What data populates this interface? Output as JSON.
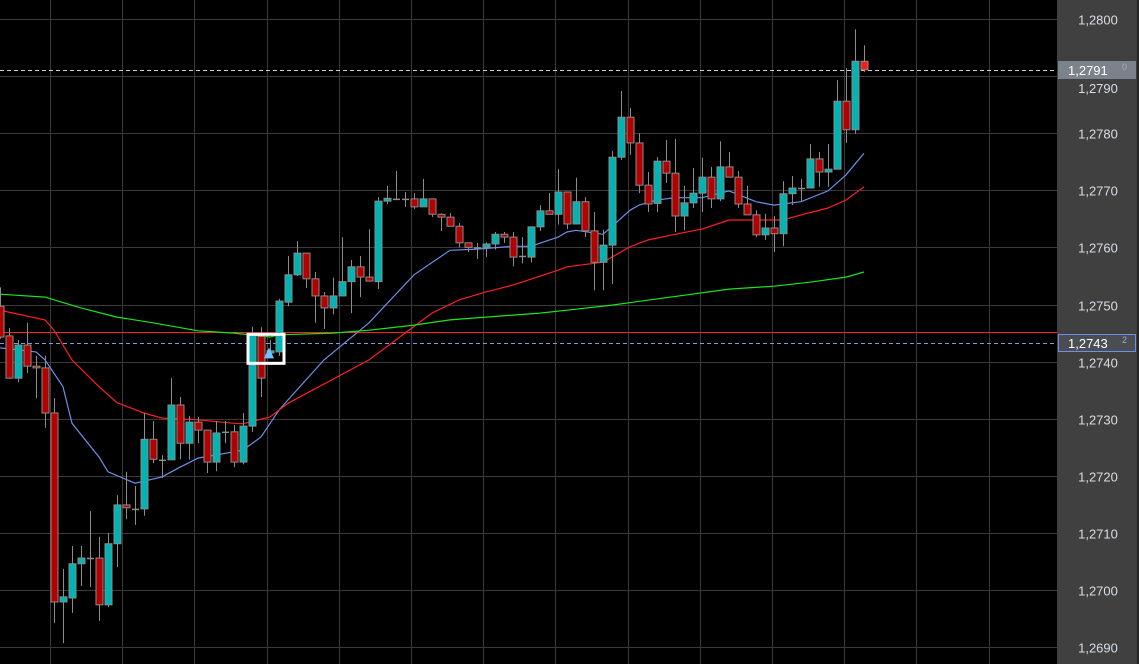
{
  "chart_data": {
    "type": "candlestick",
    "title": "",
    "xlabel": "",
    "ylabel": "",
    "ylim": [
      1.2687,
      1.28035
    ],
    "grid": true,
    "y_ticks": [
      "1,2800",
      "1,2790",
      "1,2780",
      "1,2770",
      "1,2760",
      "1,2750",
      "1,2740",
      "1,2730",
      "1,2720",
      "1,2710",
      "1,2700",
      "1,2690"
    ],
    "y_tick_values": [
      1.28,
      1.279,
      1.278,
      1.277,
      1.276,
      1.275,
      1.274,
      1.273,
      1.272,
      1.271,
      1.27,
      1.269
    ],
    "candles_ohlc": [
      [
        1.27497,
        1.2753,
        1.2744,
        1.27443
      ],
      [
        1.27445,
        1.27459,
        1.2737,
        1.27371
      ],
      [
        1.27371,
        1.27438,
        1.27364,
        1.27429
      ],
      [
        1.27429,
        1.27468,
        1.2738,
        1.27392
      ],
      [
        1.27392,
        1.2741,
        1.27336,
        1.27389
      ],
      [
        1.27389,
        1.2741,
        1.27284,
        1.2731
      ],
      [
        1.2731,
        1.27336,
        1.26942,
        1.26979
      ],
      [
        1.26979,
        1.27037,
        1.26907,
        1.26988
      ],
      [
        1.26986,
        1.27077,
        1.2696,
        1.27046
      ],
      [
        1.27046,
        1.27077,
        1.27007,
        1.27056
      ],
      [
        1.27056,
        1.27138,
        1.27005,
        1.27056
      ],
      [
        1.27056,
        1.27093,
        1.26946,
        1.26974
      ],
      [
        1.26974,
        1.271,
        1.2697,
        1.27081
      ],
      [
        1.27081,
        1.27166,
        1.2704,
        1.27149
      ],
      [
        1.27149,
        1.27207,
        1.27124,
        1.27144
      ],
      [
        1.27142,
        1.27182,
        1.27114,
        1.27142
      ],
      [
        1.27142,
        1.2731,
        1.2713,
        1.27264
      ],
      [
        1.27264,
        1.27296,
        1.27222,
        1.27229
      ],
      [
        1.27228,
        1.27236,
        1.27196,
        1.27228
      ],
      [
        1.27228,
        1.27371,
        1.27228,
        1.27324
      ],
      [
        1.27324,
        1.27338,
        1.27229,
        1.27257
      ],
      [
        1.27257,
        1.27305,
        1.27228,
        1.27294
      ],
      [
        1.27294,
        1.27303,
        1.27257,
        1.2728
      ],
      [
        1.2728,
        1.2728,
        1.27205,
        1.27224
      ],
      [
        1.27224,
        1.27296,
        1.27208,
        1.27275
      ],
      [
        1.27277,
        1.27296,
        1.27257,
        1.27277
      ],
      [
        1.27277,
        1.27289,
        1.27215,
        1.27224
      ],
      [
        1.27224,
        1.2731,
        1.2722,
        1.27287
      ],
      [
        1.27287,
        1.27461,
        1.27277,
        1.27447
      ],
      [
        1.27444,
        1.2746,
        1.27338,
        1.27371
      ],
      [
        1.27415,
        1.27438,
        1.27408,
        1.27419
      ],
      [
        1.27417,
        1.2751,
        1.2741,
        1.27506
      ],
      [
        1.27504,
        1.27585,
        1.27497,
        1.27552
      ],
      [
        1.27552,
        1.27611,
        1.2755,
        1.2759
      ],
      [
        1.2759,
        1.2759,
        1.27529,
        1.27545
      ],
      [
        1.27545,
        1.27557,
        1.27468,
        1.27515
      ],
      [
        1.27515,
        1.27522,
        1.27457,
        1.27494
      ],
      [
        1.27494,
        1.27547,
        1.27483,
        1.27515
      ],
      [
        1.27515,
        1.27618,
        1.27515,
        1.2754
      ],
      [
        1.2754,
        1.27578,
        1.27485,
        1.27566
      ],
      [
        1.27566,
        1.27585,
        1.27513,
        1.27548
      ],
      [
        1.27548,
        1.27632,
        1.2754,
        1.27541
      ],
      [
        1.2754,
        1.27688,
        1.27527,
        1.27681
      ],
      [
        1.27681,
        1.27708,
        1.27676,
        1.27686
      ],
      [
        1.27685,
        1.27734,
        1.27685,
        1.27685
      ],
      [
        1.27685,
        1.27697,
        1.27671,
        1.27685
      ],
      [
        1.27685,
        1.27695,
        1.27667,
        1.27671
      ],
      [
        1.27671,
        1.2772,
        1.27671,
        1.27685
      ],
      [
        1.27685,
        1.27685,
        1.27653,
        1.27658
      ],
      [
        1.27658,
        1.2766,
        1.27629,
        1.27653
      ],
      [
        1.27653,
        1.2766,
        1.27637,
        1.27637
      ],
      [
        1.27637,
        1.27643,
        1.276,
        1.27608
      ],
      [
        1.27608,
        1.27608,
        1.27592,
        1.276
      ],
      [
        1.276,
        1.27608,
        1.2758,
        1.276
      ],
      [
        1.276,
        1.27609,
        1.27583,
        1.27606
      ],
      [
        1.27606,
        1.27627,
        1.27596,
        1.27623
      ],
      [
        1.27623,
        1.27627,
        1.27608,
        1.27618
      ],
      [
        1.27618,
        1.27627,
        1.27567,
        1.27583
      ],
      [
        1.27585,
        1.27618,
        1.27572,
        1.27585
      ],
      [
        1.27583,
        1.27636,
        1.27574,
        1.27636
      ],
      [
        1.27636,
        1.27674,
        1.27629,
        1.27664
      ],
      [
        1.27664,
        1.27695,
        1.27658,
        1.27658
      ],
      [
        1.27658,
        1.27737,
        1.2764,
        1.27697
      ],
      [
        1.27697,
        1.27697,
        1.27632,
        1.27641
      ],
      [
        1.27641,
        1.27722,
        1.27641,
        1.2768
      ],
      [
        1.2768,
        1.27688,
        1.27618,
        1.27629
      ],
      [
        1.27629,
        1.27662,
        1.27525,
        1.27574
      ],
      [
        1.27574,
        1.27631,
        1.27525,
        1.27604
      ],
      [
        1.27604,
        1.27769,
        1.27536,
        1.27758
      ],
      [
        1.27758,
        1.27874,
        1.27753,
        1.27828
      ],
      [
        1.27828,
        1.27844,
        1.27762,
        1.27783
      ],
      [
        1.27783,
        1.278,
        1.27695,
        1.27709
      ],
      [
        1.27709,
        1.27732,
        1.27662,
        1.27676
      ],
      [
        1.27677,
        1.27758,
        1.27662,
        1.27751
      ],
      [
        1.27751,
        1.27788,
        1.27713,
        1.2773
      ],
      [
        1.2773,
        1.2779,
        1.27627,
        1.27655
      ],
      [
        1.27655,
        1.27708,
        1.2763,
        1.27678
      ],
      [
        1.27678,
        1.27739,
        1.27669,
        1.27695
      ],
      [
        1.27695,
        1.27757,
        1.27662,
        1.27723
      ],
      [
        1.27723,
        1.27741,
        1.27669,
        1.27685
      ],
      [
        1.27685,
        1.27786,
        1.27681,
        1.27741
      ],
      [
        1.27741,
        1.27767,
        1.27723,
        1.27723
      ],
      [
        1.27723,
        1.27734,
        1.27669,
        1.27676
      ],
      [
        1.27676,
        1.27708,
        1.27657,
        1.27657
      ],
      [
        1.27657,
        1.27665,
        1.27618,
        1.27622
      ],
      [
        1.27622,
        1.27659,
        1.27613,
        1.27634
      ],
      [
        1.27634,
        1.27655,
        1.27592,
        1.27624
      ],
      [
        1.27624,
        1.27716,
        1.27602,
        1.27694
      ],
      [
        1.27694,
        1.27725,
        1.27674,
        1.27704
      ],
      [
        1.27704,
        1.2772,
        1.2768,
        1.27704
      ],
      [
        1.27704,
        1.27781,
        1.27704,
        1.27755
      ],
      [
        1.27755,
        1.27767,
        1.27706,
        1.27732
      ],
      [
        1.27732,
        1.27781,
        1.27706,
        1.27737
      ],
      [
        1.27737,
        1.27893,
        1.27737,
        1.27856
      ],
      [
        1.27856,
        1.27914,
        1.27783,
        1.27806
      ],
      [
        1.27806,
        1.27982,
        1.27799,
        1.27926
      ],
      [
        1.27926,
        1.27954,
        1.27907,
        1.27911
      ]
    ],
    "moving_averages": [
      {
        "color": "#6f8fe8",
        "points": [
          [
            0,
            1.27424
          ],
          [
            4,
            1.27417
          ],
          [
            5,
            1.27403
          ],
          [
            7,
            1.27356
          ],
          [
            8,
            1.27292
          ],
          [
            11,
            1.27233
          ],
          [
            12,
            1.27207
          ],
          [
            15,
            1.27187
          ],
          [
            18,
            1.27198
          ],
          [
            20,
            1.27215
          ],
          [
            22,
            1.27231
          ],
          [
            26,
            1.27242
          ],
          [
            27,
            1.27245
          ],
          [
            29,
            1.27268
          ],
          [
            31,
            1.27315
          ],
          [
            32,
            1.27333
          ],
          [
            36,
            1.27403
          ],
          [
            41,
            1.27468
          ],
          [
            46,
            1.27552
          ],
          [
            50,
            1.27595
          ],
          [
            53,
            1.27597
          ],
          [
            57,
            1.27602
          ],
          [
            59,
            1.27602
          ],
          [
            62,
            1.27618
          ],
          [
            63,
            1.27627
          ],
          [
            64,
            1.2763
          ],
          [
            67,
            1.27623
          ],
          [
            70,
            1.27665
          ],
          [
            71,
            1.27674
          ],
          [
            73,
            1.27683
          ],
          [
            75,
            1.27687
          ],
          [
            78,
            1.27687
          ],
          [
            81,
            1.27699
          ],
          [
            84,
            1.2768
          ],
          [
            86,
            1.27674
          ],
          [
            89,
            1.2768
          ],
          [
            92,
            1.27699
          ],
          [
            94,
            1.27727
          ],
          [
            96,
            1.27765
          ]
        ]
      },
      {
        "color": "#ff1f1f",
        "points": [
          [
            0,
            1.2749
          ],
          [
            5,
            1.27473
          ],
          [
            6,
            1.27455
          ],
          [
            8,
            1.27403
          ],
          [
            11,
            1.27356
          ],
          [
            13,
            1.27328
          ],
          [
            16,
            1.2731
          ],
          [
            18,
            1.27301
          ],
          [
            22,
            1.27298
          ],
          [
            26,
            1.27292
          ],
          [
            27,
            1.27291
          ],
          [
            30,
            1.27303
          ],
          [
            32,
            1.27327
          ],
          [
            41,
            1.27403
          ],
          [
            45,
            1.2745
          ],
          [
            48,
            1.27485
          ],
          [
            51,
            1.27508
          ],
          [
            54,
            1.27522
          ],
          [
            57,
            1.27534
          ],
          [
            62,
            1.2756
          ],
          [
            63,
            1.27566
          ],
          [
            67,
            1.27574
          ],
          [
            70,
            1.27601
          ],
          [
            72,
            1.27613
          ],
          [
            75,
            1.27623
          ],
          [
            78,
            1.27632
          ],
          [
            81,
            1.27648
          ],
          [
            87,
            1.27648
          ],
          [
            89,
            1.27657
          ],
          [
            92,
            1.27669
          ],
          [
            94,
            1.27683
          ],
          [
            96,
            1.27706
          ]
        ]
      },
      {
        "color": "#19e619",
        "points": [
          [
            0,
            1.27518
          ],
          [
            5,
            1.27513
          ],
          [
            9,
            1.27494
          ],
          [
            13,
            1.27478
          ],
          [
            17,
            1.27468
          ],
          [
            22,
            1.27454
          ],
          [
            26,
            1.2745
          ],
          [
            30,
            1.27443
          ],
          [
            31,
            1.27447
          ],
          [
            37,
            1.2745
          ],
          [
            41,
            1.27455
          ],
          [
            46,
            1.27464
          ],
          [
            50,
            1.27473
          ],
          [
            54,
            1.27478
          ],
          [
            60,
            1.27485
          ],
          [
            63,
            1.2749
          ],
          [
            68,
            1.27499
          ],
          [
            81,
            1.27527
          ],
          [
            86,
            1.27532
          ],
          [
            90,
            1.27539
          ],
          [
            94,
            1.27548
          ],
          [
            96,
            1.27557
          ]
        ]
      }
    ],
    "horizontal_lines": [
      {
        "price": 1.27452,
        "color": "#ff2020",
        "style": "solid"
      },
      {
        "price": 1.2791,
        "color": "#d0d0d0",
        "style": "dashed"
      },
      {
        "price": 1.27432,
        "color": "#7a9ce0",
        "style": "dashed"
      }
    ],
    "price_labels": [
      {
        "text": "1,2791",
        "sup": "0",
        "price": 1.2791,
        "bg": "#7b828c",
        "border": "#7b828c"
      },
      {
        "text": "1,2743",
        "sup": "2",
        "price": 1.27432,
        "bg": "#4a4d52",
        "border": "#6f8fe8"
      }
    ],
    "marker": {
      "candle": 30,
      "price": 1.27432,
      "color": "#6ec3ff",
      "icon": "triangle-up-icon"
    },
    "colors": {
      "up": "#00b4b4",
      "down": "#b30000",
      "current": "#ff1a1a",
      "wick": "#8c8c8c",
      "grid": "#3a3a3a",
      "axis_bg": "#404040"
    }
  }
}
